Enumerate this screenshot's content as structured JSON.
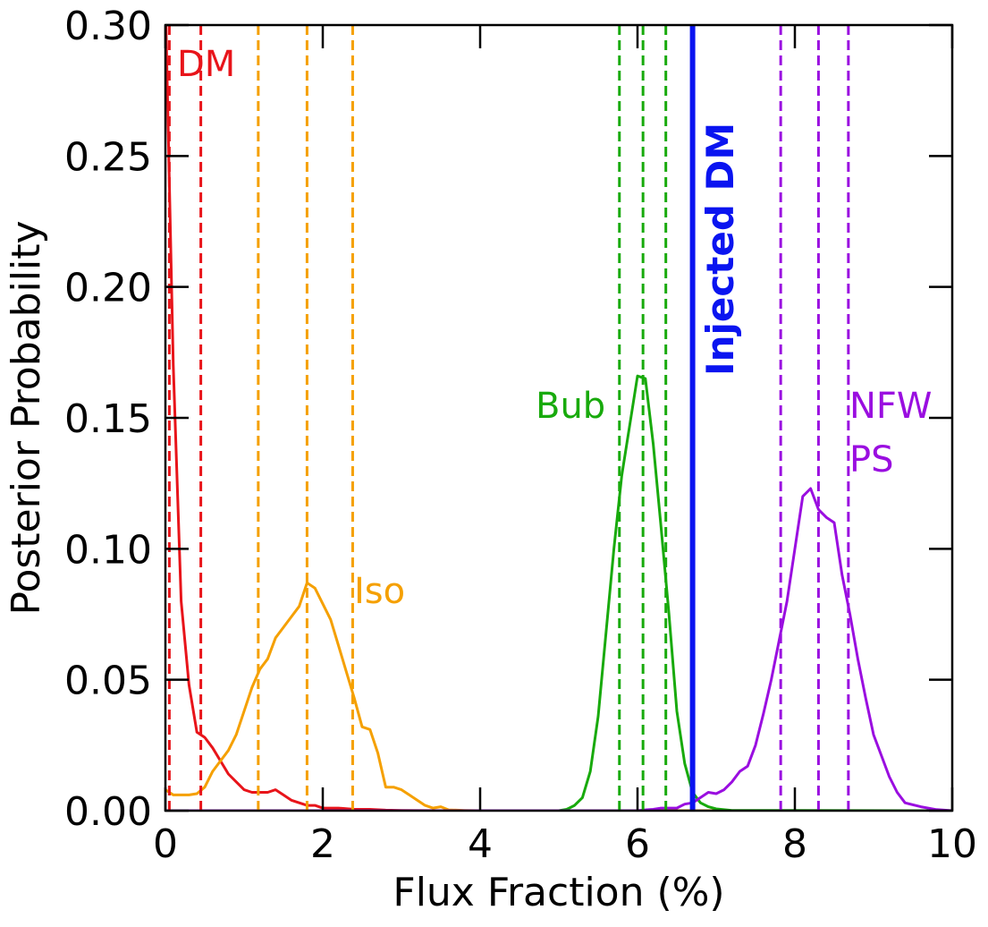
{
  "chart_data": {
    "type": "line",
    "xlabel": "Flux Fraction (%)",
    "ylabel": "Posterior Probability",
    "xlim": [
      0,
      10
    ],
    "ylim": [
      0,
      0.3
    ],
    "xticks": [
      0,
      2,
      4,
      6,
      8,
      10
    ],
    "xtick_labels": [
      "0",
      "2",
      "4",
      "6",
      "8",
      "10"
    ],
    "yticks": [
      0,
      0.05,
      0.1,
      0.15,
      0.2,
      0.25,
      0.3
    ],
    "ytick_labels": [
      "0.00",
      "0.05",
      "0.10",
      "0.15",
      "0.20",
      "0.25",
      "0.30"
    ],
    "grid": false,
    "series": [
      {
        "name": "DM",
        "color": "#e8141a",
        "x": [
          0.0,
          0.1,
          0.2,
          0.3,
          0.4,
          0.5,
          0.6,
          0.7,
          0.8,
          0.9,
          1.0,
          1.1,
          1.2,
          1.3,
          1.4,
          1.5,
          1.6,
          1.7,
          1.8,
          1.9,
          2.0,
          2.1,
          2.2,
          2.4,
          2.6,
          2.8,
          3.0,
          3.5,
          10.0
        ],
        "y": [
          0.31,
          0.17,
          0.08,
          0.048,
          0.03,
          0.028,
          0.024,
          0.019,
          0.014,
          0.011,
          0.008,
          0.007,
          0.007,
          0.007,
          0.008,
          0.006,
          0.004,
          0.003,
          0.002,
          0.002,
          0.001,
          0.001,
          0.001,
          0.0005,
          0.0005,
          0.0002,
          0.0001,
          0.0,
          0.0
        ],
        "quantiles": [
          0.05,
          0.45
        ]
      },
      {
        "name": "Iso",
        "color": "#f5a000",
        "x": [
          0.0,
          0.1,
          0.2,
          0.3,
          0.4,
          0.5,
          0.6,
          0.7,
          0.8,
          0.9,
          1.0,
          1.1,
          1.2,
          1.3,
          1.4,
          1.5,
          1.6,
          1.7,
          1.8,
          1.9,
          2.0,
          2.1,
          2.2,
          2.3,
          2.4,
          2.5,
          2.6,
          2.7,
          2.8,
          2.9,
          3.0,
          3.1,
          3.2,
          3.3,
          3.4,
          3.5,
          3.6,
          3.8,
          4.0,
          10.0
        ],
        "y": [
          0.008,
          0.006,
          0.006,
          0.006,
          0.0065,
          0.009,
          0.015,
          0.019,
          0.023,
          0.029,
          0.038,
          0.047,
          0.054,
          0.058,
          0.066,
          0.07,
          0.074,
          0.078,
          0.087,
          0.085,
          0.079,
          0.073,
          0.063,
          0.053,
          0.043,
          0.032,
          0.031,
          0.022,
          0.009,
          0.009,
          0.008,
          0.006,
          0.004,
          0.002,
          0.001,
          0.0015,
          0.0003,
          0.0001,
          0.0,
          0.0
        ],
        "quantiles": [
          1.18,
          1.8,
          2.38
        ]
      },
      {
        "name": "Bub",
        "color": "#18aa0c",
        "x": [
          0.0,
          5.0,
          5.1,
          5.2,
          5.3,
          5.4,
          5.5,
          5.6,
          5.7,
          5.8,
          5.9,
          6.0,
          6.1,
          6.2,
          6.3,
          6.4,
          6.5,
          6.6,
          6.7,
          6.8,
          6.9,
          7.0,
          7.2,
          10.0
        ],
        "y": [
          0.0,
          0.0,
          0.0005,
          0.002,
          0.005,
          0.015,
          0.036,
          0.068,
          0.1,
          0.128,
          0.147,
          0.166,
          0.165,
          0.14,
          0.108,
          0.075,
          0.038,
          0.018,
          0.007,
          0.003,
          0.0015,
          0.0007,
          0.0001,
          0.0
        ]
      },
      {
        "name": "NFW PS",
        "color": "#9a0ee0",
        "x": [
          0.0,
          6.0,
          6.1,
          6.2,
          6.3,
          6.4,
          6.5,
          6.6,
          6.7,
          6.8,
          6.9,
          7.0,
          7.1,
          7.2,
          7.3,
          7.4,
          7.5,
          7.6,
          7.7,
          7.8,
          7.9,
          8.0,
          8.1,
          8.2,
          8.3,
          8.4,
          8.5,
          8.6,
          8.7,
          8.8,
          8.9,
          9.0,
          9.1,
          9.2,
          9.3,
          9.4,
          9.6,
          9.8,
          10.0
        ],
        "y": [
          0.0,
          0.0,
          0.0003,
          0.0005,
          0.001,
          0.001,
          0.001,
          0.0025,
          0.003,
          0.005,
          0.007,
          0.0065,
          0.008,
          0.011,
          0.015,
          0.017,
          0.025,
          0.037,
          0.05,
          0.065,
          0.08,
          0.1,
          0.12,
          0.123,
          0.115,
          0.112,
          0.11,
          0.09,
          0.075,
          0.058,
          0.043,
          0.029,
          0.021,
          0.013,
          0.007,
          0.003,
          0.0015,
          0.0004,
          0.0
        ]
      }
    ],
    "vertical_lines": [
      {
        "series": "DM",
        "x": 0.05,
        "style": "dashed",
        "color": "#e8141a"
      },
      {
        "series": "DM",
        "x": 0.45,
        "style": "dashed",
        "color": "#e8141a"
      },
      {
        "series": "Iso",
        "x": 1.18,
        "style": "dashed",
        "color": "#f5a000"
      },
      {
        "series": "Iso",
        "x": 1.8,
        "style": "dashed",
        "color": "#f5a000"
      },
      {
        "series": "Iso",
        "x": 2.38,
        "style": "dashed",
        "color": "#f5a000"
      },
      {
        "series": "Bub",
        "x": 5.77,
        "style": "dashed",
        "color": "#18aa0c"
      },
      {
        "series": "Bub",
        "x": 6.07,
        "style": "dashed",
        "color": "#18aa0c"
      },
      {
        "series": "Bub",
        "x": 6.36,
        "style": "dashed",
        "color": "#18aa0c"
      },
      {
        "series": "NFW PS",
        "x": 7.82,
        "style": "dashed",
        "color": "#9a0ee0"
      },
      {
        "series": "NFW PS",
        "x": 8.3,
        "style": "dashed",
        "color": "#9a0ee0"
      },
      {
        "series": "NFW PS",
        "x": 8.68,
        "style": "dashed",
        "color": "#9a0ee0"
      },
      {
        "series": "Injected DM",
        "x": 6.7,
        "style": "solid",
        "color": "#0a14f0"
      }
    ],
    "annotations": [
      {
        "text": "DM",
        "color": "#e8141a"
      },
      {
        "text": "Iso",
        "color": "#f5a000"
      },
      {
        "text": "Bub",
        "color": "#18aa0c"
      },
      {
        "text": "NFW",
        "color": "#9a0ee0"
      },
      {
        "text": "PS",
        "color": "#9a0ee0"
      },
      {
        "text": "Injected DM",
        "color": "#0a14f0",
        "bold": true
      }
    ]
  }
}
